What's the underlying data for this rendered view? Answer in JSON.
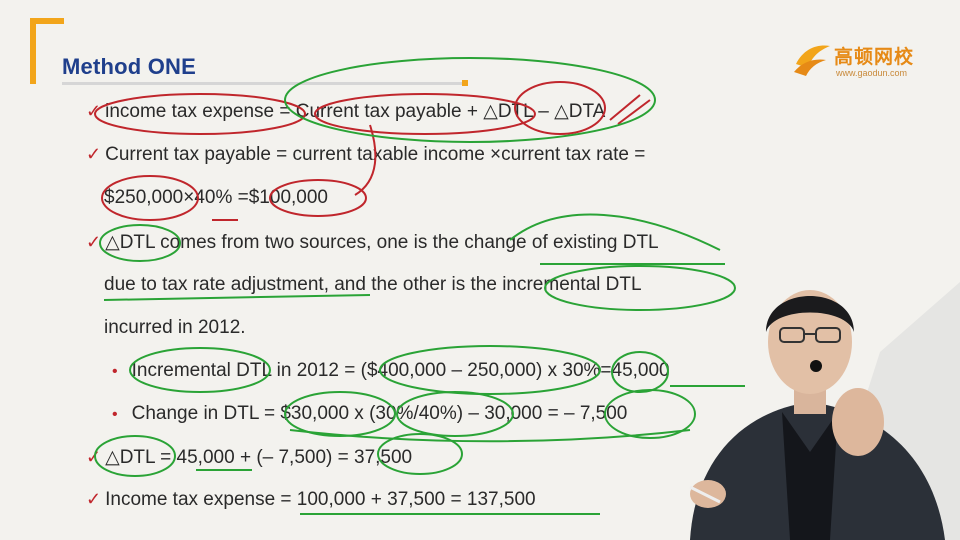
{
  "slide": {
    "title": "Method ONE",
    "logo": {
      "brand": "高顿网校",
      "url": "www.gaodun.com"
    },
    "lines": [
      {
        "marker": "✓",
        "text": "income tax expense = Current tax payable + △DTL – △DTA"
      },
      {
        "marker": "✓",
        "text": "Current tax payable = current taxable income ×current tax rate ="
      },
      {
        "marker": "",
        "text": "$250,000×40% =$100,000"
      },
      {
        "marker": "✓",
        "text": "△DTL comes from two sources, one is the change of existing DTL"
      },
      {
        "marker": "",
        "text": "due to tax rate adjustment, and the other is the incremental DTL"
      },
      {
        "marker": "",
        "text": "incurred in 2012."
      },
      {
        "marker": "•",
        "text": "Incremental DTL in 2012 = ($400,000 – 250,000) x 30%=45,000"
      },
      {
        "marker": "•",
        "text": "Change in DTL = $30,000 x (30%/40%) – 30,000 = – 7,500"
      },
      {
        "marker": "✓",
        "text": "△DTL = 45,000 + (– 7,500) = 37,500"
      },
      {
        "marker": "✓",
        "text": "Income tax expense = 100,000 + 37,500 = 137,500"
      }
    ]
  },
  "colors": {
    "title": "#1f3f8c",
    "accent": "#f2a51a",
    "ink_red": "#c0262c",
    "ink_green": "#2aa336"
  }
}
